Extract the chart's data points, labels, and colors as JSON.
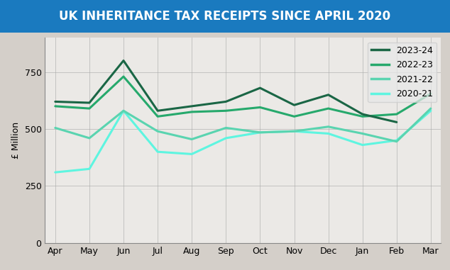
{
  "title": "UK INHERITANCE TAX RECEIPTS SINCE APRIL 2020",
  "title_bg_color": "#1a7abf",
  "title_text_color": "#ffffff",
  "ylabel": "£ Million",
  "months": [
    "Apr",
    "May",
    "Jun",
    "Jul",
    "Aug",
    "Sep",
    "Oct",
    "Nov",
    "Dec",
    "Jan",
    "Feb",
    "Mar"
  ],
  "series": {
    "2023-24": {
      "color": "#1a6645",
      "linewidth": 2.2,
      "data": [
        620,
        615,
        800,
        580,
        600,
        620,
        680,
        605,
        650,
        565,
        530,
        null
      ]
    },
    "2022-23": {
      "color": "#26a96c",
      "linewidth": 2.2,
      "data": [
        600,
        590,
        730,
        555,
        575,
        580,
        595,
        555,
        590,
        555,
        565,
        655
      ]
    },
    "2021-22": {
      "color": "#5ad4b0",
      "linewidth": 2.2,
      "data": [
        505,
        460,
        580,
        490,
        455,
        505,
        485,
        490,
        510,
        480,
        445,
        590
      ]
    },
    "2020-21": {
      "color": "#5ef5e0",
      "linewidth": 2.2,
      "data": [
        310,
        325,
        580,
        400,
        390,
        460,
        485,
        490,
        480,
        430,
        450,
        580
      ]
    }
  },
  "yticks": [
    0,
    250,
    500,
    750
  ],
  "ylim": [
    0,
    900
  ],
  "legend_labels": [
    "2023-24",
    "2022-23",
    "2021-22",
    "2020-21"
  ],
  "fig_width": 6.34,
  "fig_height": 3.81,
  "dpi": 100,
  "title_fontsize": 12,
  "axis_fontsize": 9,
  "bg_color": "#d4cfc9",
  "plot_bg_alpha": 0.55
}
